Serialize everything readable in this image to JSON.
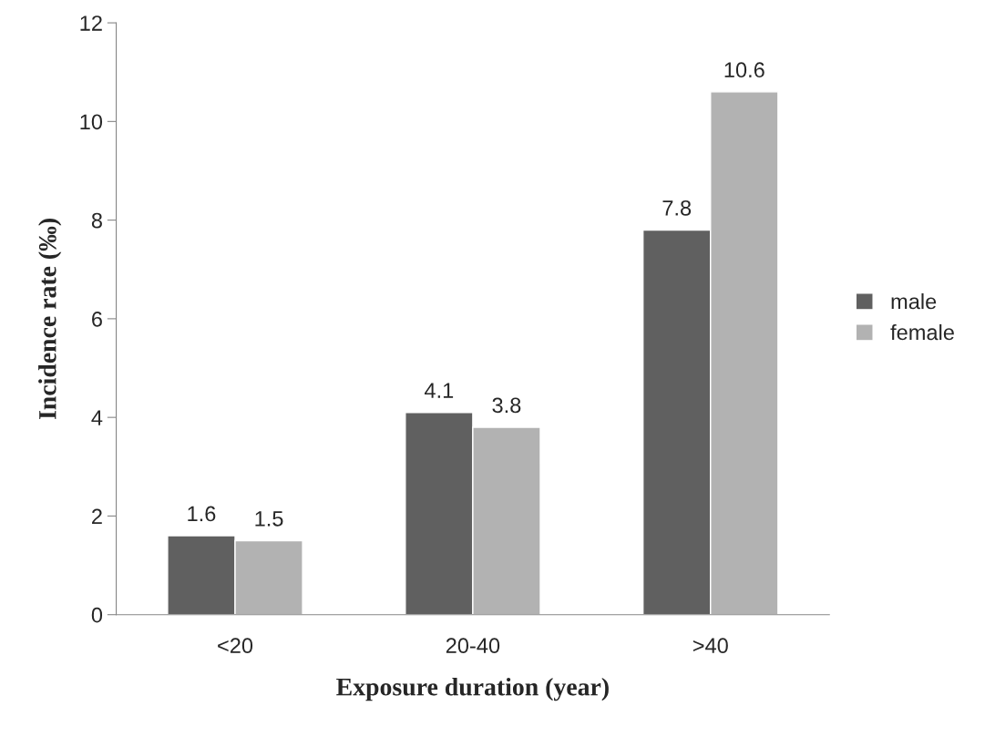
{
  "chart_data": {
    "type": "bar",
    "categories": [
      "<20",
      "20-40",
      ">40"
    ],
    "series": [
      {
        "name": "male",
        "color": "#606060",
        "values": [
          1.6,
          4.1,
          7.8
        ]
      },
      {
        "name": "female",
        "color": "#b2b2b2",
        "values": [
          1.5,
          3.8,
          10.6
        ]
      }
    ],
    "xlabel": "Exposure duration (year)",
    "ylabel": "Incidence rate (‰)",
    "ylim": [
      0,
      12
    ],
    "yticks": [
      0,
      2,
      4,
      6,
      8,
      10,
      12
    ],
    "data_labels": true,
    "legend": "right",
    "grid": false
  }
}
